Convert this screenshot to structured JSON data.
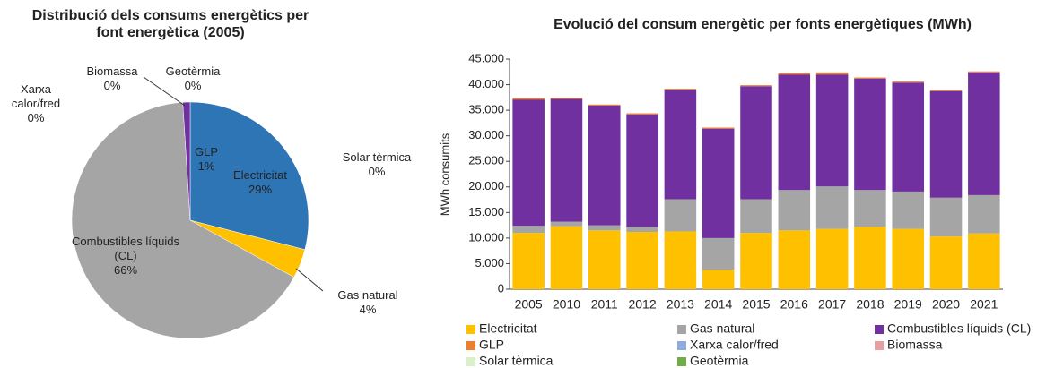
{
  "chart_data": [
    {
      "type": "pie",
      "title": "Distribució dels consums energètics per font energètica (2005)",
      "categories": [
        "Electricitat",
        "Gas natural",
        "Combustibles líquids (CL)",
        "GLP",
        "Xarxa calor/fred",
        "Biomassa",
        "Geotèrmia",
        "Solar tèrmica"
      ],
      "values": [
        29,
        4,
        66,
        1,
        0,
        0,
        0,
        0
      ],
      "value_labels": [
        "29%",
        "4%",
        "66%",
        "1%",
        "0%",
        "0%",
        "0%",
        "0%"
      ],
      "colors": [
        "#2e75b6",
        "#ffc000",
        "#a5a5a5",
        "#7030a0",
        "#8faadc",
        "#e6a0a0",
        "#70ad47",
        "#d9f0c8"
      ]
    },
    {
      "type": "bar",
      "stacked": true,
      "title": "Evolució del consum energètic per fonts energètiques (MWh)",
      "y_label": "MWh consumits",
      "categories": [
        "2005",
        "2010",
        "2011",
        "2012",
        "2013",
        "2014",
        "2015",
        "2016",
        "2017",
        "2018",
        "2019",
        "2020",
        "2021"
      ],
      "series": [
        {
          "name": "Electricitat",
          "color": "#ffc000",
          "values": [
            11000,
            12300,
            11500,
            11200,
            11300,
            3800,
            11000,
            11500,
            11800,
            12200,
            11800,
            10300,
            10900
          ]
        },
        {
          "name": "Gas natural",
          "color": "#a5a5a5",
          "values": [
            1400,
            900,
            1000,
            1000,
            6300,
            6200,
            6600,
            7900,
            8300,
            7200,
            7300,
            7600,
            7500
          ]
        },
        {
          "name": "Combustibles líquids (CL)",
          "color": "#7030a0",
          "values": [
            24700,
            24000,
            23400,
            22000,
            21400,
            21400,
            22100,
            22600,
            21900,
            21800,
            21300,
            20800,
            24000
          ]
        },
        {
          "name": "GLP",
          "color": "#ed7d31",
          "values": [
            300,
            200,
            200,
            200,
            200,
            200,
            200,
            300,
            400,
            200,
            200,
            200,
            200
          ]
        },
        {
          "name": "Xarxa calor/fred",
          "color": "#8faadc",
          "values": [
            0,
            0,
            0,
            0,
            0,
            0,
            0,
            0,
            0,
            0,
            0,
            0,
            0
          ]
        },
        {
          "name": "Biomassa",
          "color": "#e6a0a0",
          "values": [
            0,
            0,
            0,
            0,
            0,
            0,
            0,
            0,
            0,
            0,
            0,
            0,
            0
          ]
        },
        {
          "name": "Solar tèrmica",
          "color": "#d9f0c8",
          "values": [
            0,
            0,
            0,
            0,
            0,
            0,
            0,
            0,
            0,
            0,
            0,
            0,
            0
          ]
        },
        {
          "name": "Geotèrmia",
          "color": "#70ad47",
          "values": [
            0,
            0,
            0,
            0,
            0,
            0,
            0,
            0,
            0,
            0,
            0,
            0,
            0
          ]
        }
      ],
      "ylim": [
        0,
        45000
      ],
      "yticks": [
        0,
        {
          "value": 5000,
          "label": "5.000"
        },
        {
          "value": 10000,
          "label": "10.000"
        },
        {
          "value": 15000,
          "label": "15.000"
        },
        {
          "value": 20000,
          "label": "20.000"
        },
        {
          "value": 25000,
          "label": "25.000"
        },
        {
          "value": 30000,
          "label": "30.000"
        },
        {
          "value": 35000,
          "label": "35.000"
        },
        {
          "value": 40000,
          "label": "40.000"
        },
        {
          "value": 45000,
          "label": "45.000"
        }
      ],
      "legend": "bottom"
    }
  ]
}
